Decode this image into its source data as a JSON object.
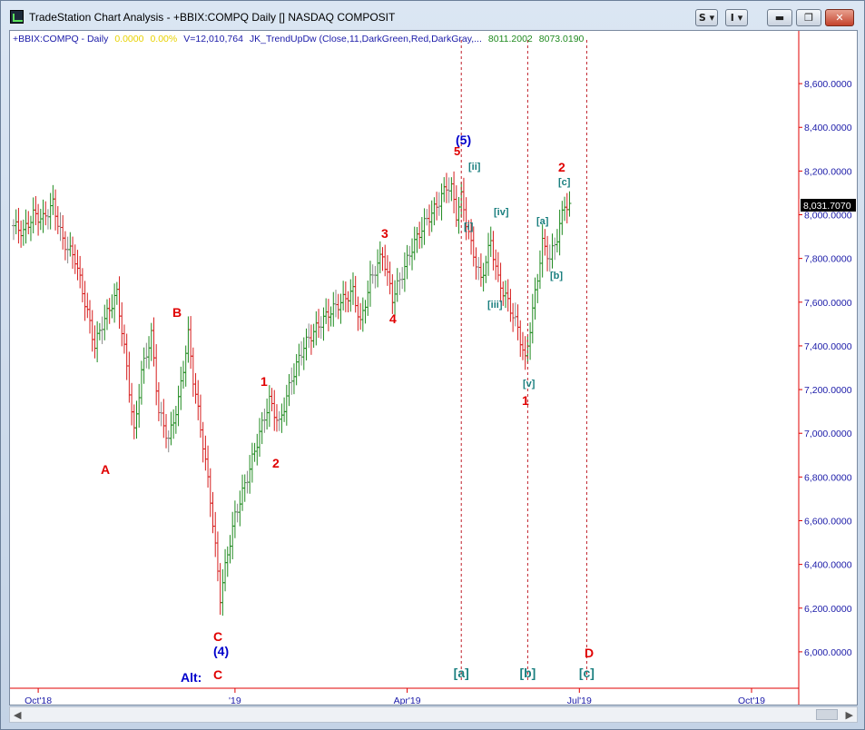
{
  "window": {
    "title": "TradeStation Chart Analysis - +BBIX:COMPQ Daily [] NASDAQ COMPOSIT",
    "btn_s": "S ▾",
    "btn_i": "I ▾"
  },
  "infoline": {
    "symbol": "+BBIX:COMPQ - Daily",
    "chg": "0.0000",
    "pct": "0.00%",
    "volume": "V=12,010,764",
    "indicator": "JK_TrendUpDw (Close,11,DarkGreen,Red,DarkGray,...",
    "val1": "8011.2002",
    "val2": "8073.0190"
  },
  "colors": {
    "up": "#1f8a1f",
    "down": "#d61c1c",
    "neutral": "#8a8a8a",
    "price_axis": "#1a1aa8",
    "wave_red": "#e00000",
    "wave_blue": "#0000cc",
    "wave_teal": "#1a7f7f"
  },
  "chart_data": {
    "type": "ohlc",
    "title": "+BBIX:COMPQ Daily NASDAQ COMPOSIT",
    "ylim": [
      5850,
      8750
    ],
    "y_ticks": [
      "8,600.0000",
      "8,400.0000",
      "8,200.0000",
      "8,000.0000",
      "7,800.0000",
      "7,600.0000",
      "7,400.0000",
      "7,200.0000",
      "7,000.0000",
      "6,800.0000",
      "6,600.0000",
      "6,400.0000",
      "6,200.0000",
      "6,000.0000"
    ],
    "x_ticks": [
      "Oct'18",
      "'19",
      "Apr'19",
      "Jul'19",
      "Oct'19"
    ],
    "last_price": "8,031.7070",
    "vertical_markers": [
      "[a]",
      "[b]",
      "[c]"
    ],
    "wave_labels": [
      "A",
      "B",
      "C",
      "(4)",
      "C",
      "Alt:",
      "1",
      "2",
      "3",
      "4",
      "(5)",
      "5",
      "[i]",
      "[ii]",
      "[iii]",
      "[iv]",
      "[v]",
      "1",
      "[a]",
      "[b]",
      "[c]",
      "2",
      "D"
    ],
    "anchor_closes": [
      [
        0,
        7950
      ],
      [
        4,
        7920
      ],
      [
        8,
        8000
      ],
      [
        12,
        7980
      ],
      [
        16,
        8050
      ],
      [
        20,
        7880
      ],
      [
        25,
        7800
      ],
      [
        30,
        7550
      ],
      [
        33,
        7400
      ],
      [
        36,
        7500
      ],
      [
        42,
        7640
      ],
      [
        46,
        7300
      ],
      [
        49,
        7000
      ],
      [
        52,
        7280
      ],
      [
        56,
        7450
      ],
      [
        59,
        7100
      ],
      [
        63,
        6970
      ],
      [
        67,
        7150
      ],
      [
        71,
        7450
      ],
      [
        73,
        7250
      ],
      [
        77,
        6950
      ],
      [
        80,
        6700
      ],
      [
        84,
        6250
      ],
      [
        87,
        6450
      ],
      [
        90,
        6620
      ],
      [
        95,
        6800
      ],
      [
        100,
        7000
      ],
      [
        104,
        7150
      ],
      [
        108,
        7040
      ],
      [
        113,
        7250
      ],
      [
        118,
        7400
      ],
      [
        123,
        7480
      ],
      [
        128,
        7550
      ],
      [
        133,
        7600
      ],
      [
        138,
        7650
      ],
      [
        141,
        7500
      ],
      [
        145,
        7700
      ],
      [
        150,
        7820
      ],
      [
        154,
        7620
      ],
      [
        157,
        7700
      ],
      [
        162,
        7850
      ],
      [
        167,
        7960
      ],
      [
        172,
        8040
      ],
      [
        176,
        8130
      ],
      [
        178,
        8120
      ],
      [
        180,
        8000
      ],
      [
        182,
        8080
      ],
      [
        186,
        7860
      ],
      [
        190,
        7700
      ],
      [
        194,
        7880
      ],
      [
        197,
        7700
      ],
      [
        201,
        7600
      ],
      [
        205,
        7480
      ],
      [
        208,
        7330
      ],
      [
        211,
        7560
      ],
      [
        215,
        7870
      ],
      [
        218,
        7800
      ],
      [
        221,
        7900
      ],
      [
        224,
        8050
      ],
      [
        226,
        8032
      ]
    ]
  }
}
